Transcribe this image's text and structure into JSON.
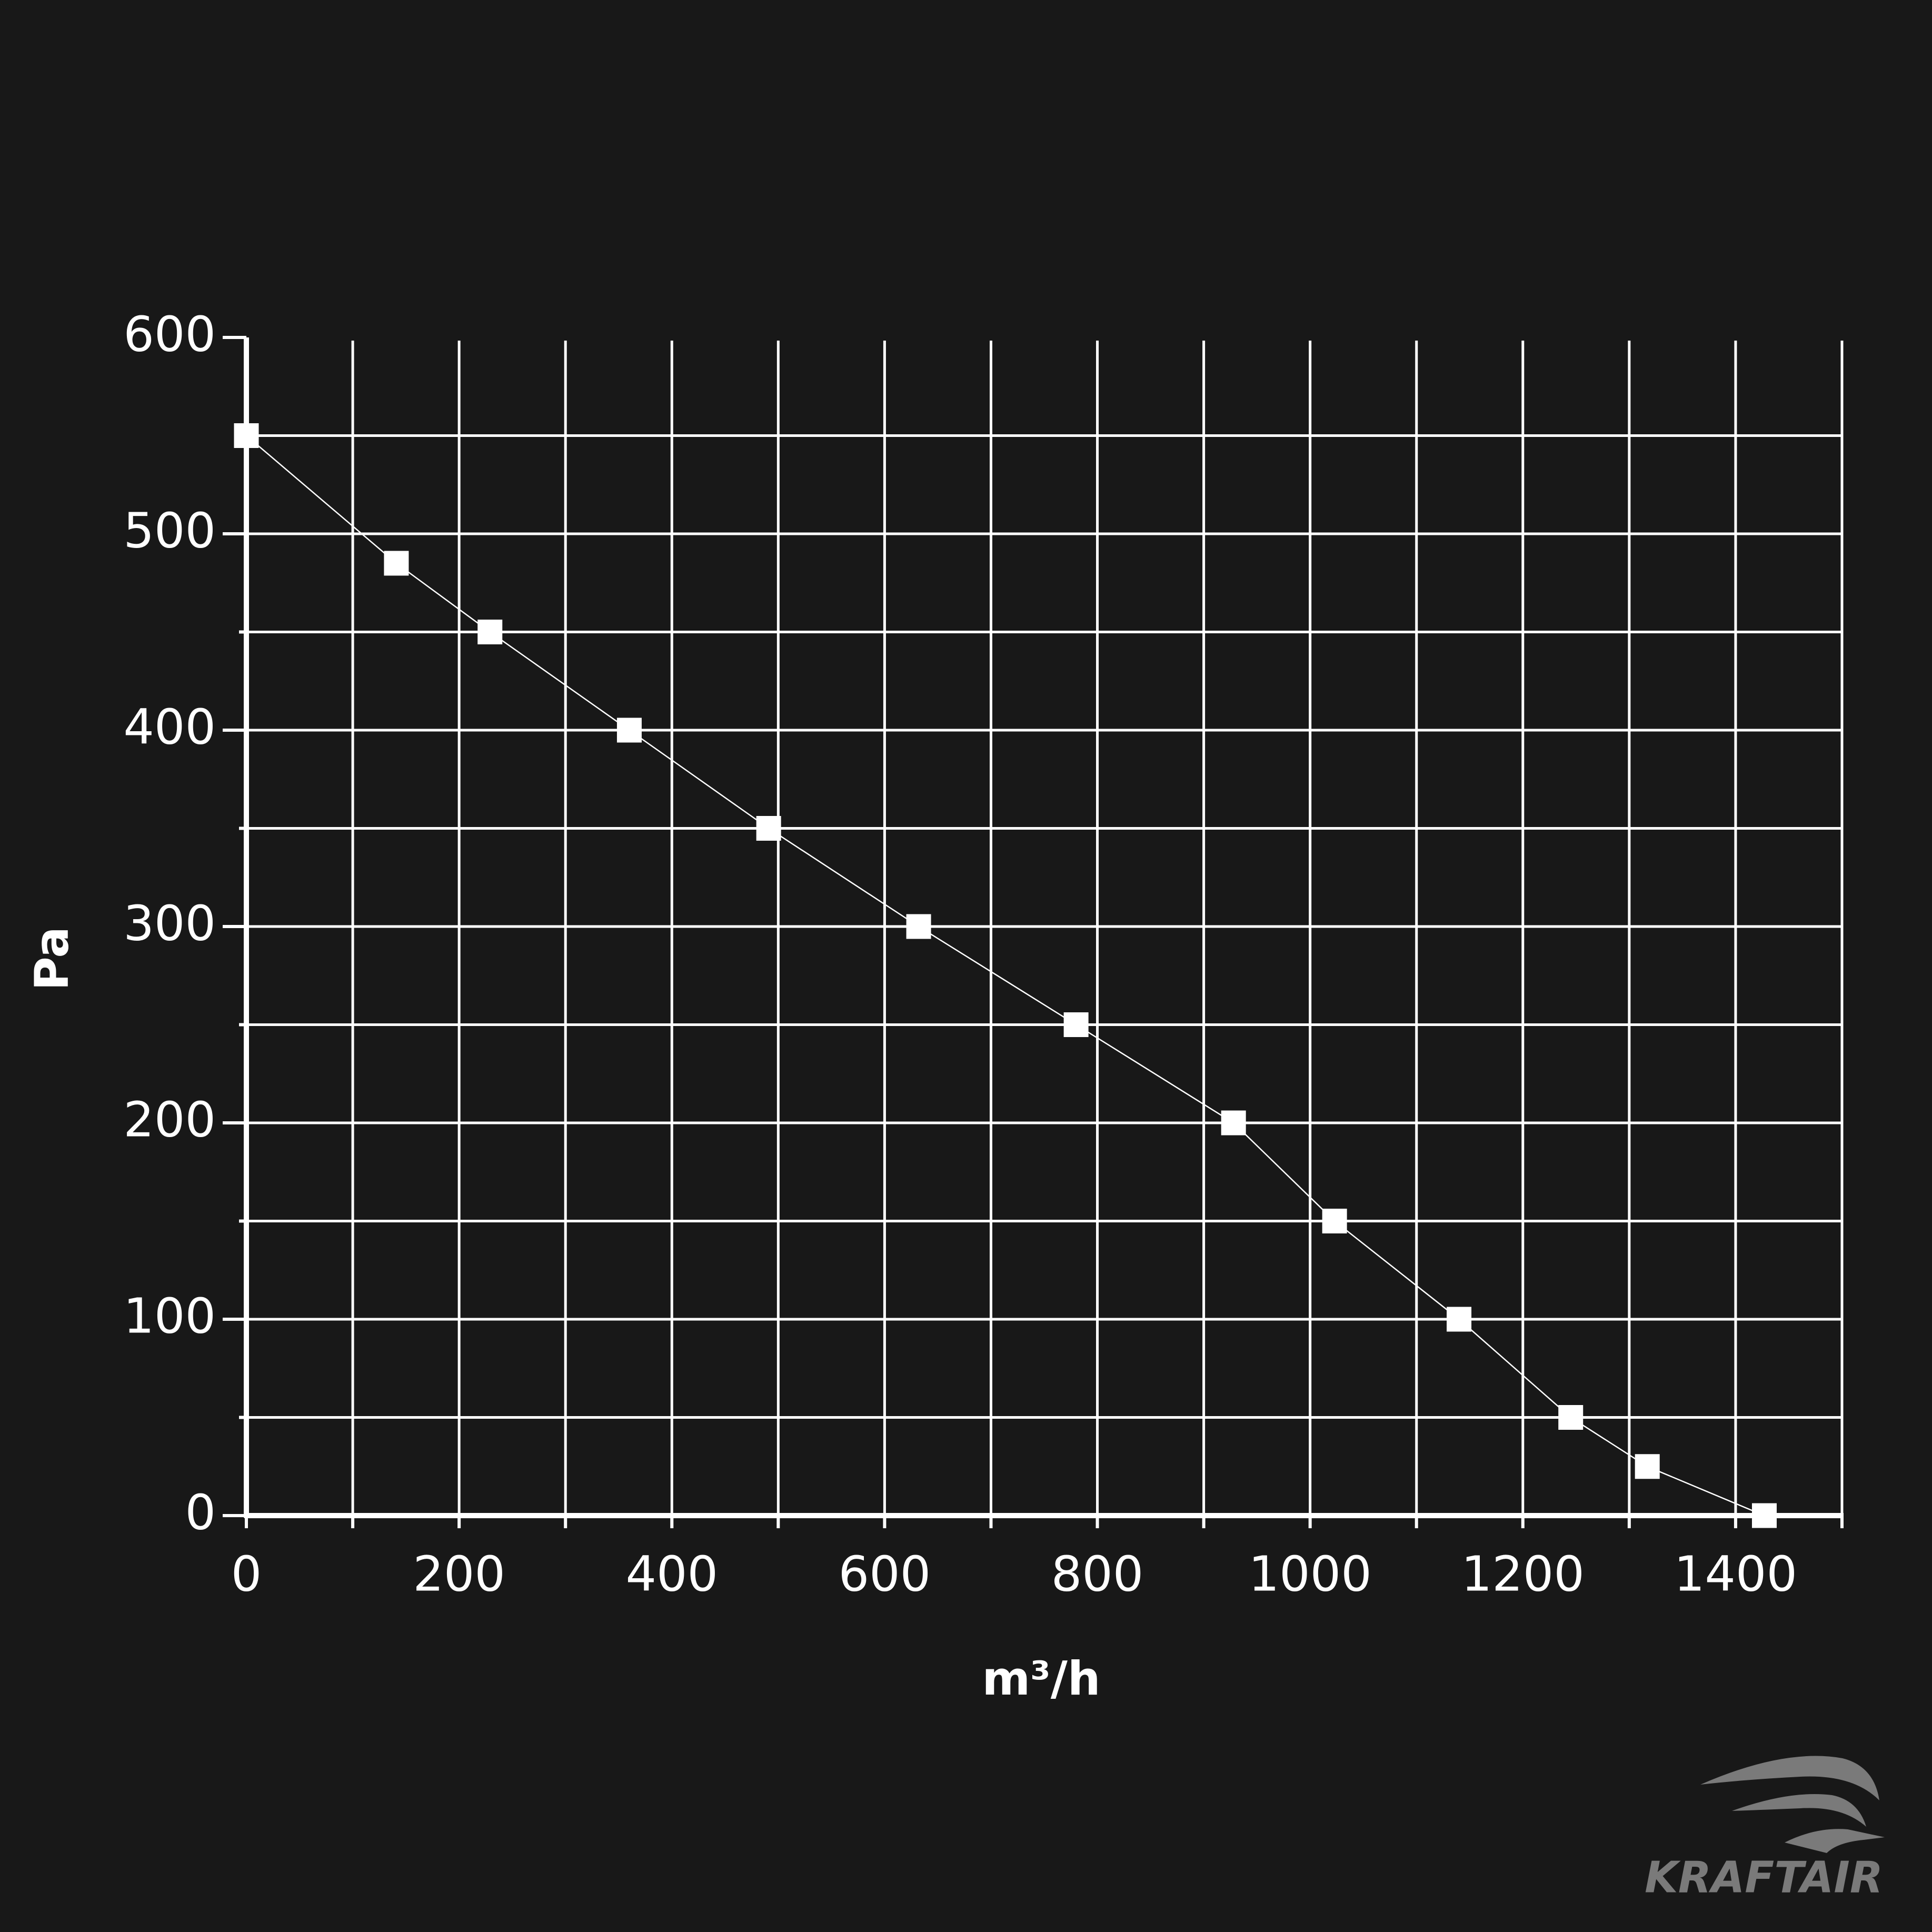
{
  "chart_data": {
    "type": "line",
    "x_label": "m³/h",
    "y_label": "Pa",
    "watermark": "KRAFTAIR",
    "x": [
      0,
      141,
      229,
      360,
      491,
      632,
      780,
      928,
      1023,
      1140,
      1245,
      1317,
      1427
    ],
    "series": [
      {
        "color": "#ffffff",
        "values": [
          550,
          485,
          450,
          400,
          350,
          300,
          250,
          200,
          150,
          100,
          50,
          25,
          0
        ]
      }
    ],
    "xlim": [
      0,
      1500
    ],
    "xticks": [
      0,
      200,
      400,
      600,
      800,
      1000,
      1200,
      1400
    ],
    "xminor": [
      100,
      300,
      500,
      700,
      900,
      1100,
      1300,
      1500
    ],
    "ylim": [
      0,
      600
    ],
    "yticks": [
      0,
      100,
      200,
      300,
      400,
      500,
      600
    ],
    "yminor": [
      50,
      150,
      250,
      350,
      450,
      550
    ],
    "grid": true,
    "marker": "square"
  }
}
